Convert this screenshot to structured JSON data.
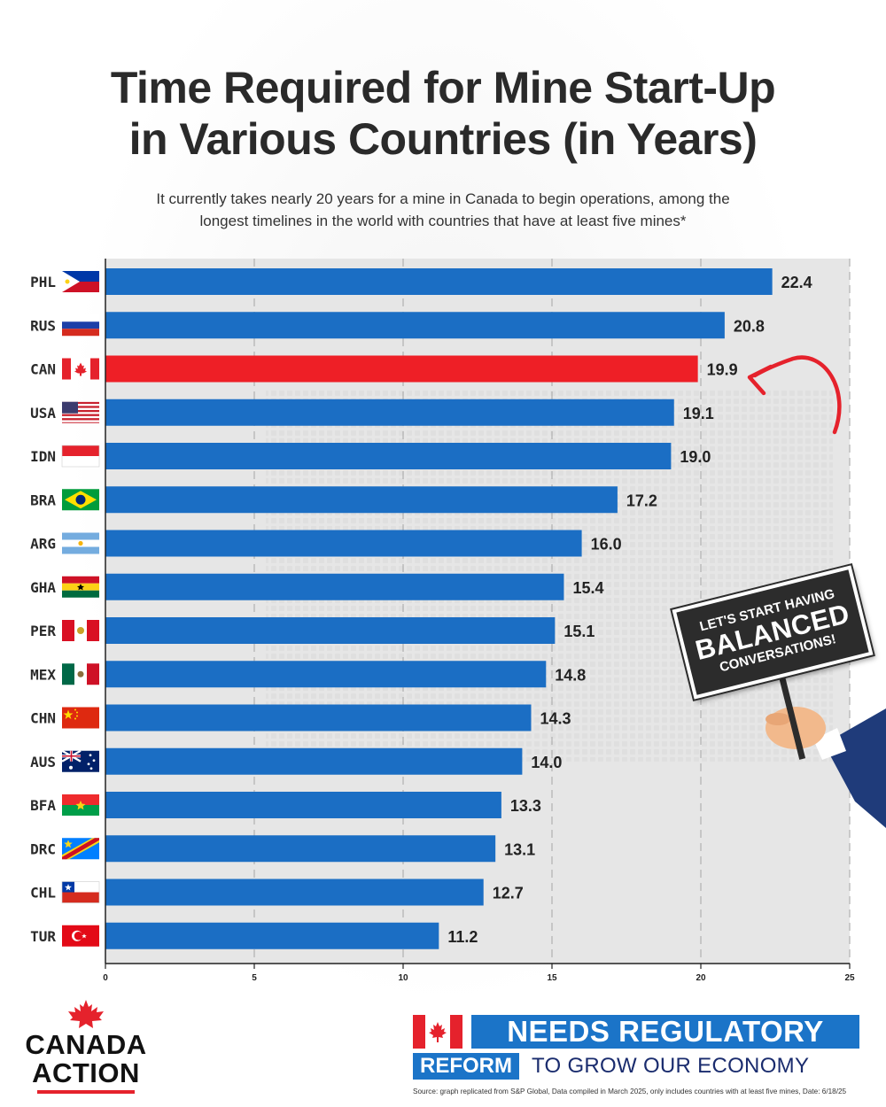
{
  "header": {
    "title_line1": "Time Required for Mine Start-Up",
    "title_line2": "in Various Countries (in Years)",
    "subtitle_line1": "It currently takes nearly 20 years for a mine in Canada to begin operations, among the",
    "subtitle_line2": "longest timelines in the world with countries that have at least five mines*"
  },
  "chart_data": {
    "type": "bar",
    "orientation": "horizontal",
    "categories": [
      "PHL",
      "RUS",
      "CAN",
      "USA",
      "IDN",
      "BRA",
      "ARG",
      "GHA",
      "PER",
      "MEX",
      "CHN",
      "AUS",
      "BFA",
      "DRC",
      "CHL",
      "TUR"
    ],
    "values": [
      22.4,
      20.8,
      19.9,
      19.1,
      19.0,
      17.2,
      16.0,
      15.4,
      15.1,
      14.8,
      14.3,
      14.0,
      13.3,
      13.1,
      12.7,
      11.2
    ],
    "value_labels": [
      "22.4",
      "20.8",
      "19.9",
      "19.1",
      "19.0",
      "17.2",
      "16.0",
      "15.4",
      "15.1",
      "14.8",
      "14.3",
      "14.0",
      "13.3",
      "13.1",
      "12.7",
      "11.2"
    ],
    "highlight": "CAN",
    "xlim": [
      0,
      25
    ],
    "xticks": [
      0,
      5,
      10,
      15,
      20,
      25
    ],
    "grid": "vertical dashed",
    "colors": {
      "bar": "#1b6ec4",
      "highlight": "#ee1f26",
      "plot_bg": "#e6e6e6"
    }
  },
  "sign": {
    "line1": "LET'S START HAVING",
    "line2": "BALANCED",
    "line3": "CONVERSATIONS!"
  },
  "logo": {
    "line1": "CANADA",
    "line2": "ACTION"
  },
  "footer": {
    "banner": "NEEDS REGULATORY",
    "reform": "REFORM",
    "tail": "TO GROW OUR ECONOMY",
    "source": "Source: graph replicated from S&P Global, Data compiled in March 2025, only includes countries with at least five mines, Date: 6/18/25"
  },
  "colors": {
    "brand_red": "#e5222c",
    "brand_blue": "#1b74c8",
    "navy": "#1a2c6e"
  }
}
